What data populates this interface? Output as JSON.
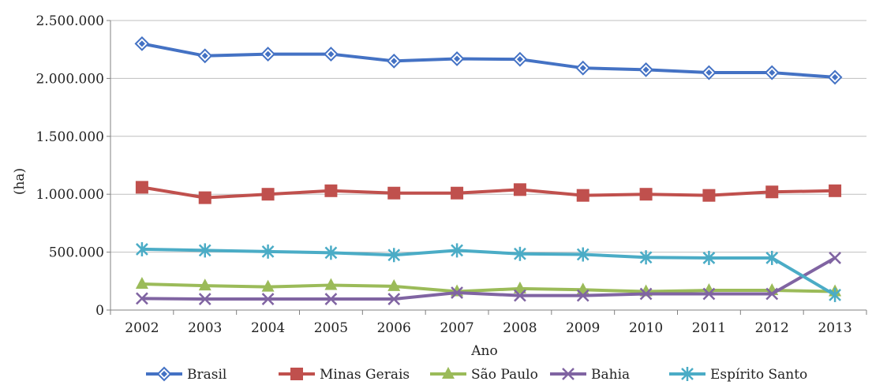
{
  "chart_data": {
    "type": "line",
    "xlabel": "Ano",
    "ylabel": "(ha)",
    "categories": [
      "2002",
      "2003",
      "2004",
      "2005",
      "2006",
      "2007",
      "2008",
      "2009",
      "2010",
      "2011",
      "2012",
      "2013"
    ],
    "ylim": [
      0,
      2500000
    ],
    "yticks": [
      0,
      500000,
      1000000,
      1500000,
      2000000,
      2500000
    ],
    "ytick_labels": [
      "0",
      "500.000",
      "1.000.000",
      "1.500.000",
      "2.000.000",
      "2.500.000"
    ],
    "grid": true,
    "legend_position": "bottom",
    "series": [
      {
        "name": "Brasil",
        "color": "#4472C4",
        "marker": "diamond",
        "values": [
          2300000,
          2195000,
          2210000,
          2210000,
          2150000,
          2170000,
          2165000,
          2090000,
          2075000,
          2050000,
          2050000,
          2010000
        ]
      },
      {
        "name": "Minas Gerais",
        "color": "#C0504D",
        "marker": "square",
        "values": [
          1060000,
          970000,
          1000000,
          1030000,
          1010000,
          1010000,
          1040000,
          990000,
          1000000,
          990000,
          1020000,
          1030000
        ]
      },
      {
        "name": "São Paulo",
        "color": "#9BBB59",
        "marker": "triangle",
        "values": [
          225000,
          210000,
          200000,
          215000,
          205000,
          160000,
          185000,
          175000,
          160000,
          170000,
          170000,
          160000
        ]
      },
      {
        "name": "Bahia",
        "color": "#8064A2",
        "marker": "x",
        "values": [
          100000,
          95000,
          95000,
          95000,
          95000,
          150000,
          125000,
          125000,
          140000,
          140000,
          140000,
          450000
        ]
      },
      {
        "name": "Espírito Santo",
        "color": "#4BACC6",
        "marker": "star",
        "values": [
          525000,
          515000,
          505000,
          495000,
          475000,
          515000,
          485000,
          480000,
          455000,
          450000,
          450000,
          130000
        ]
      }
    ]
  }
}
